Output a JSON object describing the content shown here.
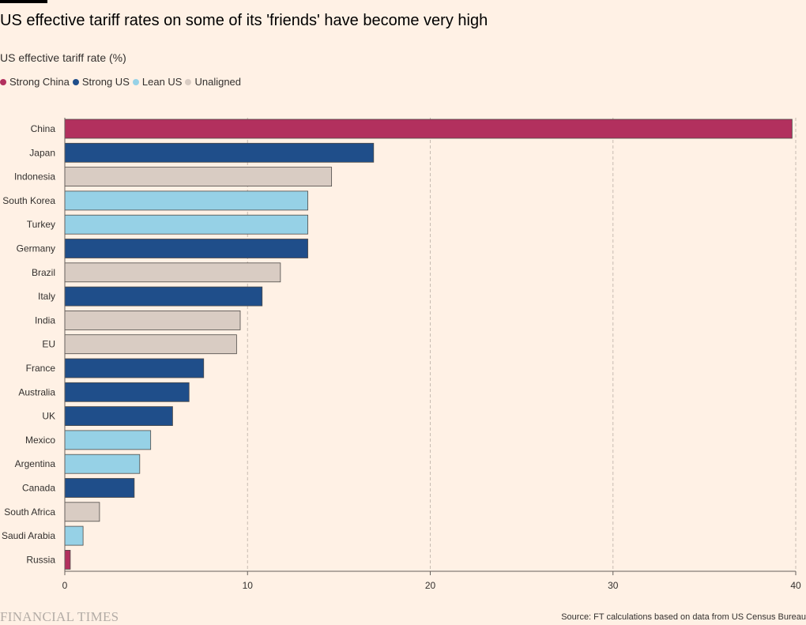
{
  "title": "US effective tariff rates on some of its 'friends' have become very high",
  "subtitle": "US effective tariff rate (%)",
  "legend": [
    {
      "label": "Strong China",
      "color": "#b2305e"
    },
    {
      "label": "Strong US",
      "color": "#1f4e8a"
    },
    {
      "label": "Lean US",
      "color": "#96d1e6"
    },
    {
      "label": "Unaligned",
      "color": "#d9ccc3"
    }
  ],
  "footer": {
    "brand": "FINANCIAL TIMES",
    "source": "Source: FT calculations based on data from US Census Bureau"
  },
  "chart_data": {
    "type": "bar",
    "orientation": "horizontal",
    "xlim": [
      0,
      40
    ],
    "x_ticks": [
      0,
      10,
      20,
      30,
      40
    ],
    "grid": true,
    "legend_position": "top-left",
    "categories": [
      "China",
      "Japan",
      "Indonesia",
      "South Korea",
      "Turkey",
      "Germany",
      "Brazil",
      "Italy",
      "India",
      "EU",
      "France",
      "Australia",
      "UK",
      "Mexico",
      "Argentina",
      "Canada",
      "South Africa",
      "Saudi Arabia",
      "Russia"
    ],
    "values": [
      39.8,
      16.9,
      14.6,
      13.3,
      13.3,
      13.3,
      11.8,
      10.8,
      9.6,
      9.4,
      7.6,
      6.8,
      5.9,
      4.7,
      4.1,
      3.8,
      1.9,
      1.0,
      0.3
    ],
    "groups": [
      "Strong China",
      "Strong US",
      "Unaligned",
      "Lean US",
      "Lean US",
      "Strong US",
      "Unaligned",
      "Strong US",
      "Unaligned",
      "Unaligned",
      "Strong US",
      "Strong US",
      "Strong US",
      "Lean US",
      "Lean US",
      "Strong US",
      "Unaligned",
      "Lean US",
      "Strong China"
    ]
  }
}
